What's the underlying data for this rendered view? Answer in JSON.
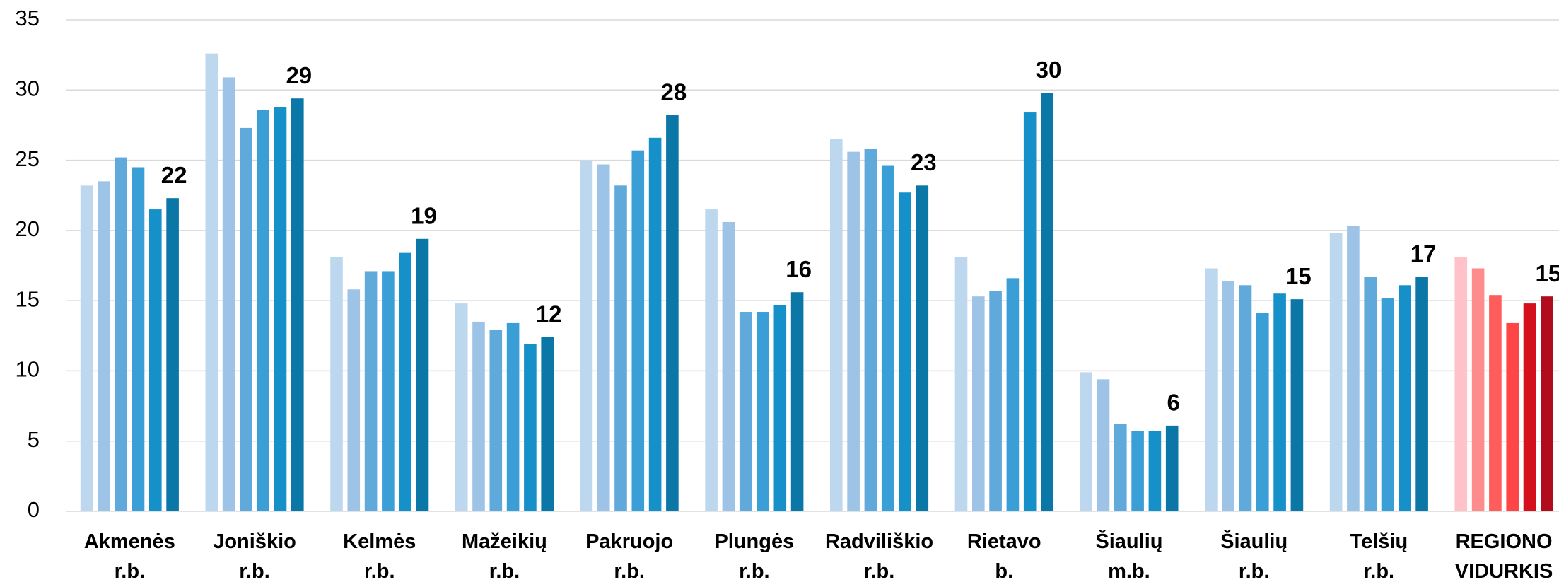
{
  "chart_data": {
    "type": "bar",
    "categories": [
      [
        "Akmenės",
        "r.b."
      ],
      [
        "Joniškio",
        "r.b."
      ],
      [
        "Kelmės",
        "r.b."
      ],
      [
        "Mažeikių",
        "r.b."
      ],
      [
        "Pakruojo",
        "r.b."
      ],
      [
        "Plungės",
        "r.b."
      ],
      [
        "Radviliškio",
        "r.b."
      ],
      [
        "Rietavo",
        "b."
      ],
      [
        "Šiaulių",
        "m.b."
      ],
      [
        "Šiaulių",
        "r.b."
      ],
      [
        "Telšių",
        "r.b."
      ],
      [
        "REGIONO",
        "VIDURKIS"
      ]
    ],
    "series": [
      {
        "colors": [
          "#bdd7ee",
          "#bdd7ee",
          "#bdd7ee",
          "#bdd7ee",
          "#bdd7ee",
          "#bdd7ee",
          "#bdd7ee",
          "#bdd7ee",
          "#bdd7ee",
          "#bdd7ee",
          "#bdd7ee",
          "#ffc2c8"
        ],
        "values": [
          23.2,
          32.6,
          18.1,
          14.8,
          25.0,
          21.5,
          26.5,
          18.1,
          9.9,
          17.3,
          19.8,
          18.1
        ]
      },
      {
        "colors": [
          "#9dc3e6",
          "#9dc3e6",
          "#9dc3e6",
          "#9dc3e6",
          "#9dc3e6",
          "#9dc3e6",
          "#9dc3e6",
          "#9dc3e6",
          "#9dc3e6",
          "#9dc3e6",
          "#9dc3e6",
          "#ff8c8c"
        ],
        "values": [
          23.5,
          30.9,
          15.8,
          13.5,
          24.7,
          20.6,
          25.6,
          15.3,
          9.4,
          16.4,
          20.3,
          17.3
        ]
      },
      {
        "colors": [
          "#5fa9db",
          "#5fa9db",
          "#5fa9db",
          "#5fa9db",
          "#5fa9db",
          "#5fa9db",
          "#5fa9db",
          "#5fa9db",
          "#5fa9db",
          "#5fa9db",
          "#5fa9db",
          "#ff5c5c"
        ],
        "values": [
          25.2,
          27.3,
          17.1,
          12.9,
          23.2,
          14.2,
          25.8,
          15.7,
          6.2,
          16.1,
          16.7,
          15.4
        ]
      },
      {
        "colors": [
          "#3a9fd6",
          "#3a9fd6",
          "#3a9fd6",
          "#3a9fd6",
          "#3a9fd6",
          "#3a9fd6",
          "#3a9fd6",
          "#3a9fd6",
          "#3a9fd6",
          "#3a9fd6",
          "#3a9fd6",
          "#ff4545"
        ],
        "values": [
          24.5,
          28.6,
          17.1,
          13.4,
          25.7,
          14.2,
          24.6,
          16.6,
          5.7,
          14.1,
          15.2,
          13.4
        ]
      },
      {
        "colors": [
          "#1690c8",
          "#1690c8",
          "#1690c8",
          "#1690c8",
          "#1690c8",
          "#1690c8",
          "#1690c8",
          "#1690c8",
          "#1690c8",
          "#1690c8",
          "#1690c8",
          "#d4101c"
        ],
        "values": [
          21.5,
          28.8,
          18.4,
          11.9,
          26.6,
          14.7,
          22.7,
          28.4,
          5.7,
          15.5,
          16.1,
          14.8
        ]
      },
      {
        "colors": [
          "#0b77a6",
          "#0b77a6",
          "#0b77a6",
          "#0b77a6",
          "#0b77a6",
          "#0b77a6",
          "#0b77a6",
          "#0b77a6",
          "#0b77a6",
          "#0b77a6",
          "#0b77a6",
          "#b00c1e"
        ],
        "values": [
          22.3,
          29.4,
          19.4,
          12.4,
          28.2,
          15.6,
          23.2,
          29.8,
          6.1,
          15.1,
          16.7,
          15.3
        ],
        "value_labels": [
          "22",
          "29",
          "19",
          "12",
          "28",
          "16",
          "23",
          "30",
          "6",
          "15",
          "17",
          "15"
        ]
      }
    ],
    "ylim": [
      0,
      35
    ],
    "yticks": [
      0,
      5,
      10,
      15,
      20,
      25,
      30,
      35
    ],
    "grid": true
  }
}
